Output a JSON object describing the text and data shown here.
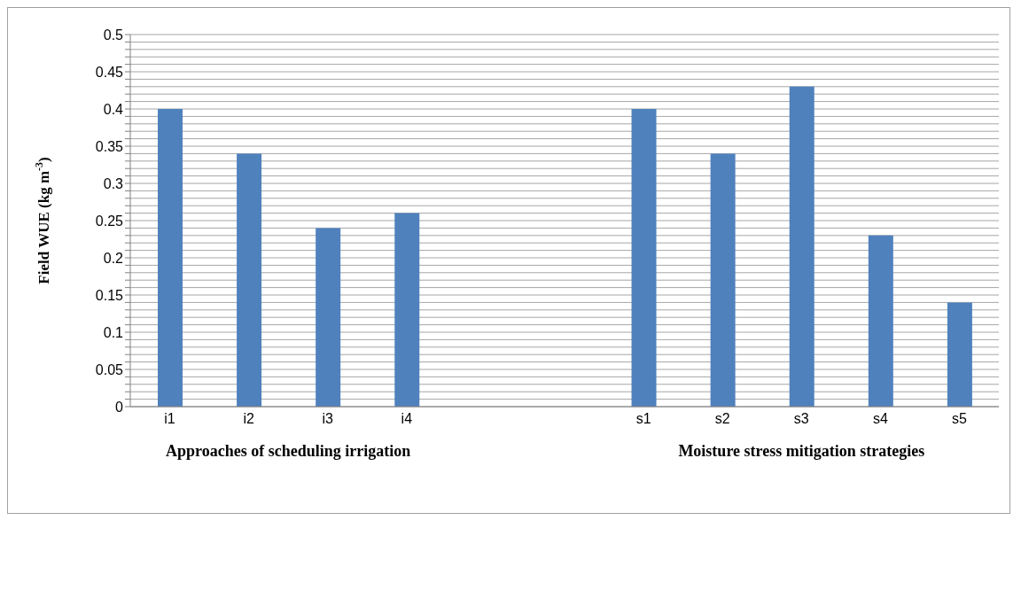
{
  "chart_data": {
    "type": "bar",
    "categories": [
      "i1",
      "i2",
      "i3",
      "i4",
      null,
      null,
      "s1",
      "s2",
      "s3",
      "s4",
      "s5"
    ],
    "values": [
      0.4,
      0.34,
      0.24,
      0.26,
      null,
      null,
      0.4,
      0.34,
      0.43,
      0.23,
      0.14
    ],
    "color": "#4f81bd",
    "ylabel": "Field WUE (kg m$^{-3}$)",
    "ylim": [
      0,
      0.5
    ],
    "yticks": [
      0,
      {
        "value": 0.01,
        "label": null
      },
      {
        "value": 0.02,
        "label": null
      },
      {
        "value": 0.03,
        "label": null
      },
      {
        "value": 0.04,
        "label": null
      },
      0.05,
      {
        "value": 0.06,
        "label": null
      },
      {
        "value": 0.07,
        "label": null
      },
      {
        "value": 0.08,
        "label": null
      },
      {
        "value": 0.09,
        "label": null
      },
      0.1,
      {
        "value": 0.11,
        "label": null
      },
      {
        "value": 0.12,
        "label": null
      },
      {
        "value": 0.13,
        "label": null
      },
      {
        "value": 0.14,
        "label": null
      },
      0.15,
      {
        "value": 0.16,
        "label": null
      },
      {
        "value": 0.17,
        "label": null
      },
      {
        "value": 0.18,
        "label": null
      },
      {
        "value": 0.19,
        "label": null
      },
      0.2,
      {
        "value": 0.21,
        "label": null
      },
      {
        "value": 0.22,
        "label": null
      },
      {
        "value": 0.23,
        "label": null
      },
      {
        "value": 0.24,
        "label": null
      },
      0.25,
      {
        "value": 0.26,
        "label": null
      },
      {
        "value": 0.27,
        "label": null
      },
      {
        "value": 0.28,
        "label": null
      },
      {
        "value": 0.29,
        "label": null
      },
      0.3,
      {
        "value": 0.31,
        "label": null
      },
      {
        "value": 0.32,
        "label": null
      },
      {
        "value": 0.33,
        "label": null
      },
      {
        "value": 0.34,
        "label": null
      },
      0.35,
      {
        "value": 0.36,
        "label": null
      },
      {
        "value": 0.37,
        "label": null
      },
      {
        "value": 0.38,
        "label": null
      },
      {
        "value": 0.39,
        "label": null
      },
      0.4,
      {
        "value": 0.41,
        "label": null
      },
      {
        "value": 0.42,
        "label": null
      },
      {
        "value": 0.43,
        "label": null
      },
      {
        "value": 0.44,
        "label": null
      },
      0.45,
      {
        "value": 0.46,
        "label": null
      },
      {
        "value": 0.47,
        "label": null
      },
      {
        "value": 0.48,
        "label": null
      },
      {
        "value": 0.49,
        "label": null
      },
      0.5
    ],
    "grid": "y",
    "legend": false,
    "annotations": [
      "Approaches of scheduling irrigation",
      "Moisture stress mitigation strategies"
    ]
  }
}
